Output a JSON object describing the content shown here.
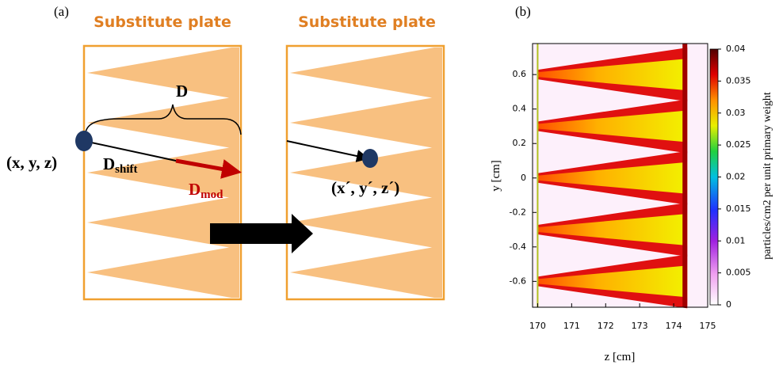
{
  "diagram": {
    "label": "(a)",
    "left_plate_title": "Substitute plate",
    "right_plate_title": "Substitute plate",
    "distance_label": "D",
    "shift_label": {
      "main": "D",
      "sub": "shift"
    },
    "mod_label": {
      "main": "D",
      "sub": "mod"
    },
    "start_point": "(x, y, z)",
    "end_point": "(x´, y´, z´)"
  },
  "panel_b_label": "(b)",
  "chart_data": {
    "type": "heatmap",
    "xlabel": "z [cm]",
    "ylabel": "y [cm]",
    "colorbar_label": "particles/cm2 per unit primary weight",
    "xlim": [
      169.85,
      175
    ],
    "xticks": [
      170,
      171,
      172,
      173,
      174,
      175
    ],
    "ylim": [
      -0.75,
      0.78
    ],
    "yticks": [
      -0.6,
      -0.4,
      -0.2,
      0,
      0.2,
      0.4,
      0.6
    ],
    "clim": [
      0,
      0.04
    ],
    "cticks": [
      0,
      0.005,
      0.01,
      0.015,
      0.02,
      0.025,
      0.03,
      0.035,
      0.04
    ]
  }
}
